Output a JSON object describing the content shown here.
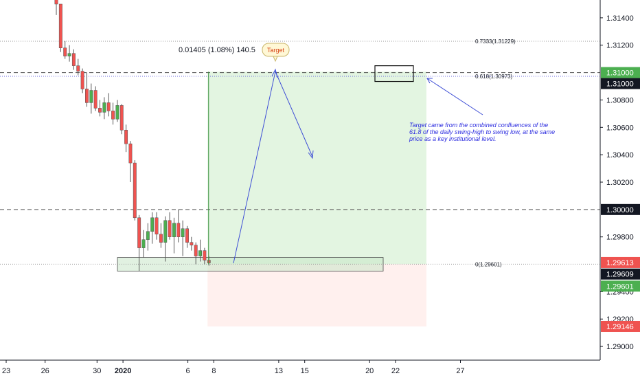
{
  "chart_data": {
    "type": "candlestick",
    "instrument_scale": "price",
    "ylim": [
      1.289,
      1.3153
    ],
    "y_ticks": [
      "1.31400",
      "1.31200",
      "1.30800",
      "1.30600",
      "1.30400",
      "1.30200",
      "1.29800",
      "1.29400",
      "1.29200",
      "1.29000"
    ],
    "x_ticks": [
      {
        "label": "23",
        "day": 23
      },
      {
        "label": "26",
        "day": 26
      },
      {
        "label": "30",
        "day": 30
      },
      {
        "label": "2020",
        "day": 32
      },
      {
        "label": "6",
        "day": 37
      },
      {
        "label": "8",
        "day": 39
      },
      {
        "label": "13",
        "day": 44
      },
      {
        "label": "15",
        "day": 46
      },
      {
        "label": "20",
        "day": 51
      },
      {
        "label": "22",
        "day": 53
      },
      {
        "label": "27",
        "day": 58
      }
    ],
    "candles": [
      {
        "o": 1.316,
        "h": 1.317,
        "l": 1.3142,
        "c": 1.315
      },
      {
        "o": 1.315,
        "h": 1.315,
        "l": 1.3115,
        "c": 1.3118
      },
      {
        "o": 1.3118,
        "h": 1.3123,
        "l": 1.311,
        "c": 1.3112
      },
      {
        "o": 1.3112,
        "h": 1.312,
        "l": 1.3108,
        "c": 1.3114
      },
      {
        "o": 1.3114,
        "h": 1.3117,
        "l": 1.3102,
        "c": 1.3105
      },
      {
        "o": 1.3105,
        "h": 1.311,
        "l": 1.3098,
        "c": 1.3101
      },
      {
        "o": 1.3101,
        "h": 1.3103,
        "l": 1.3085,
        "c": 1.3088
      },
      {
        "o": 1.3088,
        "h": 1.31,
        "l": 1.3075,
        "c": 1.3078
      },
      {
        "o": 1.3078,
        "h": 1.3092,
        "l": 1.307,
        "c": 1.3087
      },
      {
        "o": 1.3087,
        "h": 1.309,
        "l": 1.3072,
        "c": 1.3074
      },
      {
        "o": 1.3074,
        "h": 1.308,
        "l": 1.3068,
        "c": 1.3071
      },
      {
        "o": 1.3071,
        "h": 1.3082,
        "l": 1.3066,
        "c": 1.3078
      },
      {
        "o": 1.3078,
        "h": 1.3085,
        "l": 1.3068,
        "c": 1.3072
      },
      {
        "o": 1.3072,
        "h": 1.3078,
        "l": 1.3062,
        "c": 1.3066
      },
      {
        "o": 1.3066,
        "h": 1.308,
        "l": 1.3064,
        "c": 1.3076
      },
      {
        "o": 1.3076,
        "h": 1.3077,
        "l": 1.3055,
        "c": 1.3058
      },
      {
        "o": 1.3058,
        "h": 1.3062,
        "l": 1.3042,
        "c": 1.3048
      },
      {
        "o": 1.3048,
        "h": 1.305,
        "l": 1.302,
        "c": 1.3034
      },
      {
        "o": 1.3034,
        "h": 1.3036,
        "l": 1.2992,
        "c": 1.2994
      },
      {
        "o": 1.2994,
        "h": 1.2996,
        "l": 1.2955,
        "c": 1.2972
      },
      {
        "o": 1.2972,
        "h": 1.2985,
        "l": 1.2965,
        "c": 1.2978
      },
      {
        "o": 1.2978,
        "h": 1.299,
        "l": 1.297,
        "c": 1.2984
      },
      {
        "o": 1.2984,
        "h": 1.2998,
        "l": 1.2975,
        "c": 1.2994
      },
      {
        "o": 1.2994,
        "h": 1.2998,
        "l": 1.2978,
        "c": 1.2982
      },
      {
        "o": 1.2982,
        "h": 1.299,
        "l": 1.2972,
        "c": 1.2976
      },
      {
        "o": 1.2976,
        "h": 1.2995,
        "l": 1.2962,
        "c": 1.2992
      },
      {
        "o": 1.2992,
        "h": 1.2998,
        "l": 1.2978,
        "c": 1.298
      },
      {
        "o": 1.298,
        "h": 1.2994,
        "l": 1.2968,
        "c": 1.299
      },
      {
        "o": 1.299,
        "h": 1.3,
        "l": 1.2976,
        "c": 1.298
      },
      {
        "o": 1.298,
        "h": 1.2992,
        "l": 1.2966,
        "c": 1.2986
      },
      {
        "o": 1.2986,
        "h": 1.2988,
        "l": 1.2972,
        "c": 1.2976
      },
      {
        "o": 1.2976,
        "h": 1.298,
        "l": 1.297,
        "c": 1.2974
      },
      {
        "o": 1.2974,
        "h": 1.2976,
        "l": 1.296,
        "c": 1.2966
      },
      {
        "o": 1.2966,
        "h": 1.2978,
        "l": 1.2962,
        "c": 1.297
      },
      {
        "o": 1.297,
        "h": 1.2972,
        "l": 1.296,
        "c": 1.2963
      },
      {
        "o": 1.2963,
        "h": 1.2966,
        "l": 1.2959,
        "c": 1.2961
      }
    ],
    "horizontal_lines": [
      {
        "value": 1.31229,
        "style": "dotted",
        "label": "0.7333(1.31229)"
      },
      {
        "value": 1.30973,
        "style": "dotted",
        "label": "0.618(1.30973)"
      },
      {
        "value": 1.31,
        "style": "dashed"
      },
      {
        "value": 1.3,
        "style": "dashed"
      },
      {
        "value": 1.29601,
        "style": "dotted",
        "label": "0(1.29601)"
      }
    ],
    "position_tool": {
      "entry": 1.29601,
      "target": 1.31006,
      "stop": 1.29146,
      "readout": "0.01405 (1.08%) 140.5"
    },
    "demand_zone": {
      "top": 1.2965,
      "bottom": 1.2955
    },
    "key_level_box": {
      "top": 1.3105,
      "bottom": 1.30935
    },
    "target_label": "Target",
    "annotation": "Target came from the combined confluences of the 61.8 of the daily swing-high to swing low, at the same price as a key institutional level.",
    "price_badges": [
      {
        "value": 1.31,
        "label": "1.31000",
        "color": "#4caf50"
      },
      {
        "value": 1.31,
        "label": "1.31000",
        "color": "#131722",
        "offset": 1
      },
      {
        "value": 1.3,
        "label": "1.30000",
        "color": "#131722"
      },
      {
        "value": 1.29613,
        "label": "1.29613",
        "color": "#ef5350"
      },
      {
        "value": 1.29609,
        "label": "1.29609",
        "color": "#131722",
        "offset": 1
      },
      {
        "value": 1.29601,
        "label": "1.29601",
        "color": "#4caf50",
        "offset": 2
      },
      {
        "value": 1.29146,
        "label": "1.29146",
        "color": "#ef5350"
      }
    ],
    "colors": {
      "up": "#4caf50",
      "down": "#ef5350",
      "profit_zone": "#e3f5e1",
      "loss_zone": "#fff0ee",
      "arrow": "#3f4fd6"
    }
  }
}
